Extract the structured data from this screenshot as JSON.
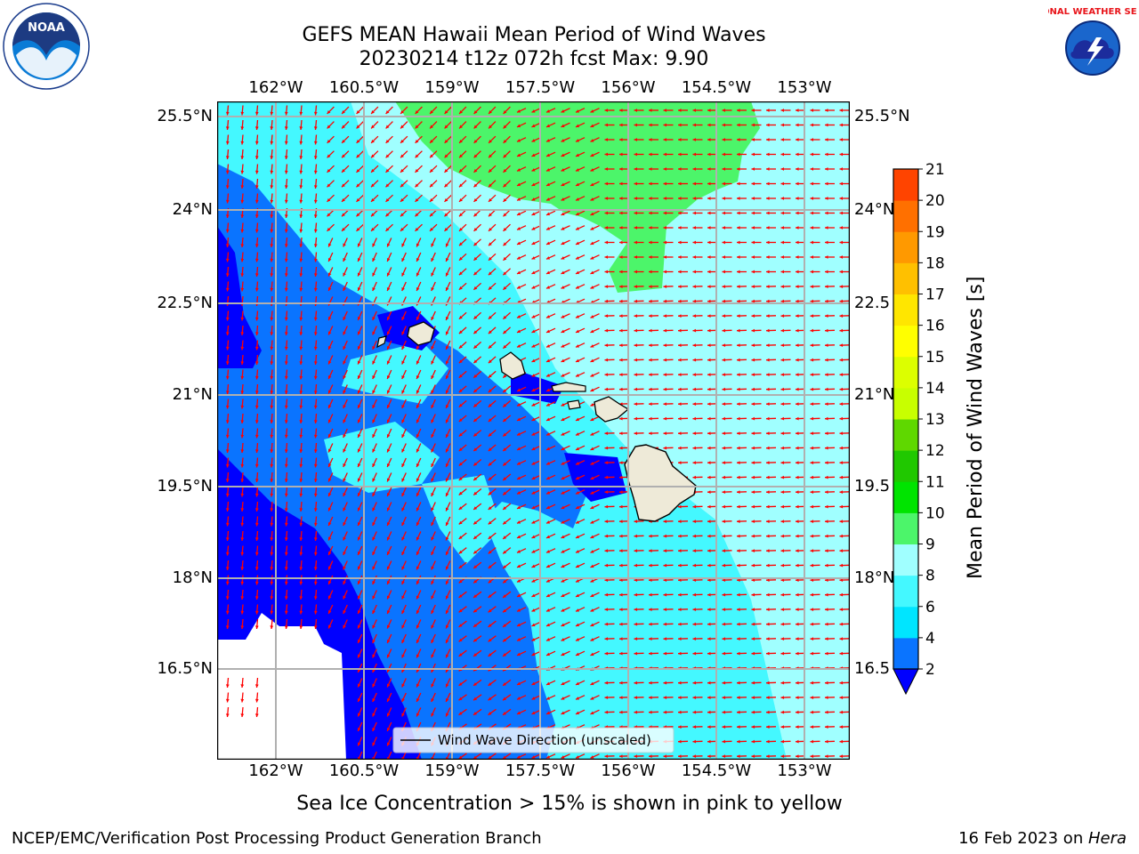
{
  "title": {
    "line1": "GEFS MEAN Hawaii Mean Period of Wind Waves",
    "line2": "20230214 t12z 072h fcst   Max: 9.90"
  },
  "map": {
    "lon_labels": [
      "162°W",
      "160.5°W",
      "159°W",
      "157.5°W",
      "156°W",
      "154.5°W",
      "153°W"
    ],
    "lat_labels": [
      "25.5°N",
      "24°N",
      "22.5°N",
      "21°N",
      "19.5°N",
      "18°N",
      "16.5°N"
    ],
    "lat_labels_right": [
      "25.5°N",
      "24°N",
      "22.5",
      "21°N",
      "19.5",
      "18°N",
      "16.5"
    ],
    "legend_label": "Wind Wave Direction (unscaled)",
    "arrow_color": "#ff0000",
    "grid_color": "#b0b0b0"
  },
  "colorbar": {
    "label": "Mean Period of Wind Waves [s]",
    "ticks": [
      "2",
      "4",
      "6",
      "8",
      "9",
      "10",
      "11",
      "12",
      "13",
      "14",
      "15",
      "16",
      "17",
      "18",
      "19",
      "20",
      "21"
    ],
    "colors": [
      "#0a74ff",
      "#00e5ff",
      "#44f8ff",
      "#a0ffff",
      "#4cf56a",
      "#00e400",
      "#20c800",
      "#5fd800",
      "#c8ff00",
      "#dcff00",
      "#ffff00",
      "#ffe600",
      "#ffc000",
      "#ff9900",
      "#ff7000",
      "#ff4400"
    ],
    "under_color": "#0000ff",
    "levels_description": "2 4 6 8 9 10 11 12 13 14 15 16 17 18 19 20 21"
  },
  "footer": {
    "ice_note": "Sea Ice Concentration > 15% is shown in pink to yellow",
    "left": "NCEP/EMC/Verification Post Processing Product Generation Branch",
    "right_prefix": "16 Feb 2023 on ",
    "right_host": "Hera"
  },
  "logos": {
    "noaa_text": "NOAA",
    "nws_text": "NATIONAL WEATHER SERVICE"
  }
}
